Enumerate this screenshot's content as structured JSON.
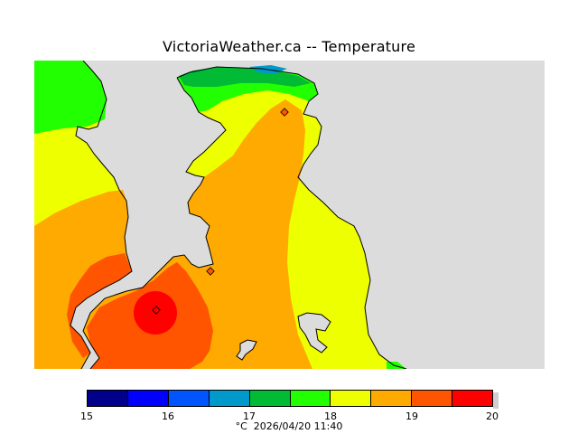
{
  "title": "VictoriaWeather.ca -- Temperature",
  "legend": {
    "ticks": [
      "15",
      "16",
      "17",
      "18",
      "19",
      "20"
    ],
    "bins": [
      {
        "from": 15.0,
        "to": 15.5,
        "color": "#00008b"
      },
      {
        "from": 15.5,
        "to": 16.0,
        "color": "#0000ff"
      },
      {
        "from": 16.0,
        "to": 16.5,
        "color": "#0055ff"
      },
      {
        "from": 16.5,
        "to": 17.0,
        "color": "#0099cc"
      },
      {
        "from": 17.0,
        "to": 17.5,
        "color": "#00bb33"
      },
      {
        "from": 17.5,
        "to": 18.0,
        "color": "#22ff00"
      },
      {
        "from": 18.0,
        "to": 18.5,
        "color": "#eeff00"
      },
      {
        "from": 18.5,
        "to": 19.0,
        "color": "#ffaa00"
      },
      {
        "from": 19.0,
        "to": 19.5,
        "color": "#ff5500"
      },
      {
        "from": 19.5,
        "to": 20.0,
        "color": "#ff0000"
      }
    ]
  },
  "footer": {
    "unit": "°C",
    "timestamp": "2026/04/20 11:40"
  },
  "colors": {
    "land_bg": "#dcdcdc",
    "coast": "#000000"
  }
}
